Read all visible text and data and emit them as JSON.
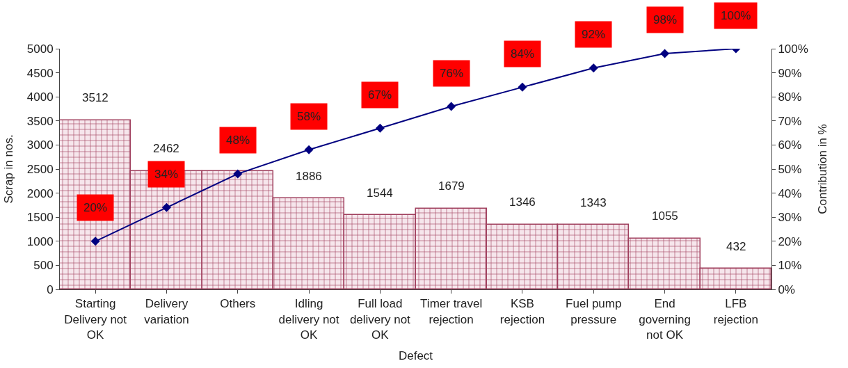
{
  "chart_data": {
    "type": "bar",
    "xlabel": "Defect",
    "ylabel": "Scrap in nos.",
    "y2label": "Contribution in %",
    "categories": [
      "Starting Delivery not OK",
      "Delivery variation",
      "Others",
      "Idling delivery not OK",
      "Full load delivery not OK",
      "Timer travel rejection",
      "KSB rejection",
      "Fuel pump pressure",
      "End governing not OK",
      "LFB rejection"
    ],
    "series": [
      {
        "color": "#a0405e",
        "values": [
          3512,
          2462,
          2450,
          1886,
          1544,
          1679,
          1346,
          1343,
          1055,
          432
        ],
        "value_labels": [
          "3512",
          "2462",
          null,
          "1886",
          "1544",
          "1679",
          "1346",
          "1343",
          "1055",
          "432"
        ]
      },
      {
        "type": "line",
        "axis": "y2",
        "color": "#000080",
        "marker": "diamond",
        "values": [
          20,
          34,
          48,
          58,
          67,
          76,
          84,
          92,
          98,
          100
        ],
        "value_labels": [
          "20%",
          "34%",
          "48%",
          "58%",
          "67%",
          "76%",
          "84%",
          "92%",
          "98%",
          "100%"
        ]
      }
    ],
    "ylim": [
      0,
      5000
    ],
    "yticks": [
      0,
      500,
      1000,
      1500,
      2000,
      2500,
      3000,
      3500,
      4000,
      4500,
      5000
    ],
    "y2lim": [
      0,
      100
    ],
    "y2ticks": [
      {
        "value": 0,
        "label": "0%"
      },
      {
        "value": 10,
        "label": "10%"
      },
      {
        "value": 20,
        "label": "20%"
      },
      {
        "value": 30,
        "label": "30%"
      },
      {
        "value": 40,
        "label": "40%"
      },
      {
        "value": 50,
        "label": "50%"
      },
      {
        "value": 60,
        "label": "60%"
      },
      {
        "value": 70,
        "label": "70%"
      },
      {
        "value": 80,
        "label": "80%"
      },
      {
        "value": 90,
        "label": "90%"
      },
      {
        "value": 100,
        "label": "100%"
      }
    ],
    "legend": false
  }
}
